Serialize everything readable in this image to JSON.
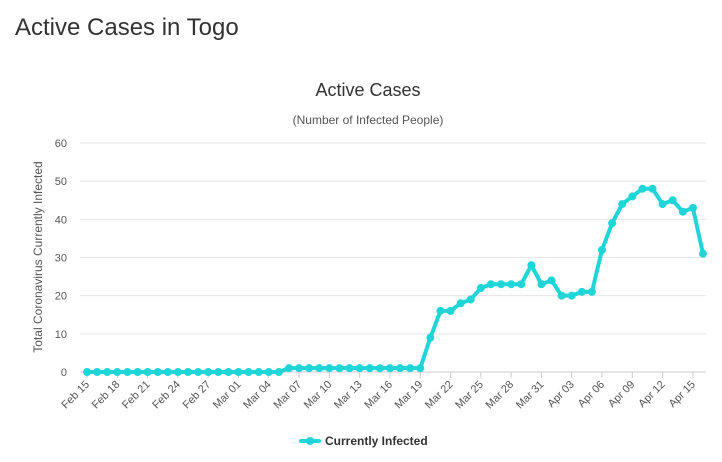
{
  "page": {
    "heading": "Active Cases in Togo"
  },
  "chart_data": {
    "type": "line",
    "title": "Active Cases",
    "subtitle": "(Number of Infected People)",
    "xlabel": "",
    "ylabel": "Total Coronavirus Currently Infected",
    "ylim": [
      0,
      60
    ],
    "yticks": [
      0,
      10,
      20,
      30,
      40,
      50,
      60
    ],
    "grid": true,
    "legend_position": "bottom-center",
    "series_color": "#1fd5d8",
    "x_tick_labels": [
      "Feb 15",
      "Feb 18",
      "Feb 21",
      "Feb 24",
      "Feb 27",
      "Mar 01",
      "Mar 04",
      "Mar 07",
      "Mar 10",
      "Mar 13",
      "Mar 16",
      "Mar 19",
      "Mar 22",
      "Mar 25",
      "Mar 28",
      "Mar 31",
      "Apr 03",
      "Apr 06",
      "Apr 09",
      "Apr 12",
      "Apr 15"
    ],
    "series": [
      {
        "name": "Currently Infected",
        "values": [
          0,
          0,
          0,
          0,
          0,
          0,
          0,
          0,
          0,
          0,
          0,
          0,
          0,
          0,
          0,
          0,
          0,
          0,
          0,
          0,
          1,
          1,
          1,
          1,
          1,
          1,
          1,
          1,
          1,
          1,
          1,
          1,
          1,
          1,
          9,
          16,
          16,
          18,
          19,
          22,
          23,
          23,
          23,
          23,
          28,
          23,
          24,
          20,
          20,
          21,
          21,
          32,
          39,
          44,
          46,
          48,
          48,
          44,
          45,
          42,
          43,
          31
        ]
      }
    ]
  }
}
